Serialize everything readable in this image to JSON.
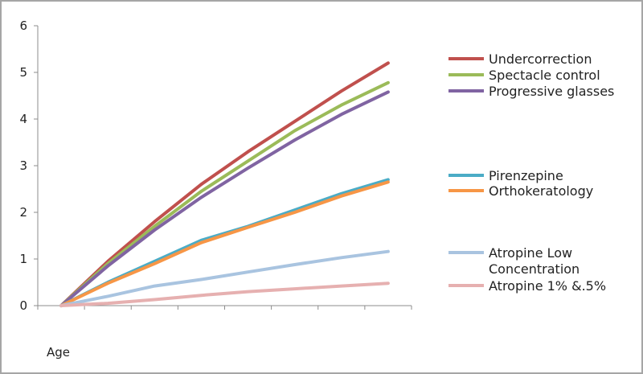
{
  "chart_data": {
    "type": "line",
    "title": "",
    "xlabel": "Age",
    "ylabel": "",
    "ylim": [
      0,
      6
    ],
    "yticks": [
      0,
      1,
      2,
      3,
      4,
      5,
      6
    ],
    "x_categories": 8,
    "x_tick_labels": [
      "",
      "",
      "",
      "",
      "",
      "",
      "",
      ""
    ],
    "grid": false,
    "legend_position": "right",
    "series": [
      {
        "name": "Undercorrection",
        "color": "#c0504d",
        "values": [
          0,
          0.95,
          1.8,
          2.6,
          3.3,
          3.95,
          4.6,
          5.2
        ]
      },
      {
        "name": "Spectacle control",
        "color": "#9bbb59",
        "values": [
          0,
          0.9,
          1.7,
          2.45,
          3.1,
          3.75,
          4.3,
          4.78
        ]
      },
      {
        "name": "Progressive glasses",
        "color": "#8064a2",
        "values": [
          0,
          0.85,
          1.62,
          2.32,
          2.95,
          3.55,
          4.1,
          4.58
        ]
      },
      {
        "name": "Pirenzepine",
        "color": "#4bacc6",
        "values": [
          0,
          0.5,
          0.95,
          1.4,
          1.7,
          2.05,
          2.4,
          2.7
        ]
      },
      {
        "name": "Orthokeratology",
        "color": "#f79646",
        "values": [
          0,
          0.48,
          0.9,
          1.35,
          1.68,
          2.0,
          2.35,
          2.65
        ]
      },
      {
        "name": "Atropine Low Concentration",
        "color": "#a9c4e0",
        "values": [
          0,
          0.2,
          0.42,
          0.56,
          0.72,
          0.88,
          1.03,
          1.16
        ]
      },
      {
        "name": "Atropine 1% &.5%",
        "color": "#e6b0b0",
        "values": [
          0,
          0.05,
          0.13,
          0.22,
          0.3,
          0.36,
          0.42,
          0.48
        ]
      }
    ]
  }
}
